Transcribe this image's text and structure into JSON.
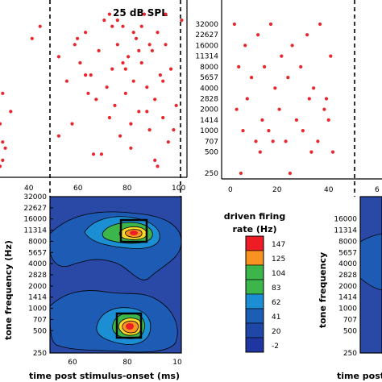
{
  "panels": {
    "raster_left": {
      "title": "25 dB SPL",
      "x_ticks": [
        "40",
        "60",
        "80",
        "100"
      ],
      "xlim": [
        30,
        100
      ]
    },
    "raster_right": {
      "y_ticks": [
        "32000",
        "22627",
        "16000",
        "11314",
        "8000",
        "5657",
        "4000",
        "2828",
        "2000",
        "1414",
        "1000",
        "707",
        "500",
        "250"
      ],
      "x_ticks": [
        "0",
        "20",
        "40",
        "6"
      ],
      "xlim": [
        -5,
        70
      ]
    },
    "contour_left": {
      "y_ticks": [
        "32000",
        "22627",
        "16000",
        "11314",
        "8000",
        "5657",
        "4000",
        "2828",
        "2000",
        "1414",
        "1000",
        "707",
        "500",
        "250"
      ],
      "x_ticks": [
        "60",
        "80",
        "10"
      ],
      "ylabel": "tone frequency (Hz)",
      "xlabel": "time post stimulus-onset (ms)"
    },
    "contour_right": {
      "y_ticks": [
        "16000",
        "11314",
        "8000",
        "5657",
        "4000",
        "2828",
        "2000",
        "1414",
        "1000",
        "707",
        "500",
        "250"
      ],
      "ylabel": "tone frequency",
      "xlabel": "time post"
    }
  },
  "colorbar": {
    "title_line1": "driven firing",
    "title_line2": "rate (Hz)",
    "levels": [
      "147",
      "125",
      "104",
      "83",
      "62",
      "41",
      "20",
      "-2"
    ],
    "colors": [
      "#ee1c24",
      "#f79321",
      "#3cb54a",
      "#3cb54a",
      "#1c8ed3",
      "#1d5eb5",
      "#1e47a8",
      "#1f36a0"
    ]
  },
  "chart_data": [
    {
      "type": "scatter",
      "title": "25 dB SPL",
      "series": [
        {
          "x": [
            31,
            34,
            31,
            30,
            32,
            31,
            30,
            42,
            45,
            52,
            55,
            58,
            60,
            62,
            64,
            66,
            67,
            69,
            70,
            71,
            72,
            73,
            74,
            75,
            76,
            77,
            78,
            79,
            80,
            81,
            82,
            83,
            84,
            85,
            86,
            87,
            88,
            89,
            90,
            91,
            92,
            93,
            94,
            96,
            98,
            52,
            57,
            63,
            68,
            72,
            76,
            79,
            82,
            85,
            88,
            91,
            95,
            59,
            65,
            71,
            77,
            83,
            89,
            62,
            74,
            80,
            86,
            92
          ],
          "y": [
            14,
            17,
            22,
            19,
            23,
            25,
            26,
            5,
            3,
            8,
            12,
            6,
            9,
            4,
            11,
            15,
            7,
            2,
            13,
            18,
            10,
            16,
            6,
            21,
            3,
            14,
            8,
            19,
            12,
            5,
            17,
            9,
            1,
            13,
            20,
            7,
            15,
            4,
            11,
            18,
            6,
            22,
            10,
            16,
            2,
            21,
            19,
            14,
            24,
            3,
            9,
            23,
            7,
            17,
            25,
            12,
            20,
            5,
            24,
            1,
            10,
            3,
            26,
            11,
            2,
            4,
            6,
            1
          ]
        }
      ]
    },
    {
      "type": "scatter",
      "series": [
        {
          "x": [
            1,
            6,
            12,
            18,
            23,
            28,
            35,
            41,
            46,
            3,
            9,
            15,
            20,
            26,
            32,
            38,
            44,
            2,
            7,
            14,
            22,
            30,
            36,
            43,
            5,
            11,
            17,
            25,
            33,
            40,
            47,
            4,
            13,
            19,
            27,
            37,
            45
          ],
          "y": [
            32000,
            16000,
            22627,
            32000,
            11314,
            16000,
            22627,
            32000,
            11314,
            8000,
            5657,
            8000,
            4000,
            5657,
            8000,
            4000,
            2828,
            2000,
            2828,
            1414,
            2000,
            1414,
            2828,
            2000,
            1000,
            707,
            1000,
            707,
            1000,
            707,
            500,
            250,
            500,
            707,
            250,
            500,
            1414
          ]
        }
      ]
    },
    {
      "type": "heatmap",
      "xlabel": "time post stimulus-onset (ms)",
      "ylabel": "tone frequency (Hz)",
      "zlabel": "driven firing rate (Hz)",
      "peaks": [
        {
          "t_ms": 82,
          "freq_hz": 11314,
          "rate_hz": 147
        },
        {
          "t_ms": 80,
          "freq_hz": 707,
          "rate_hz": 147
        }
      ]
    }
  ]
}
